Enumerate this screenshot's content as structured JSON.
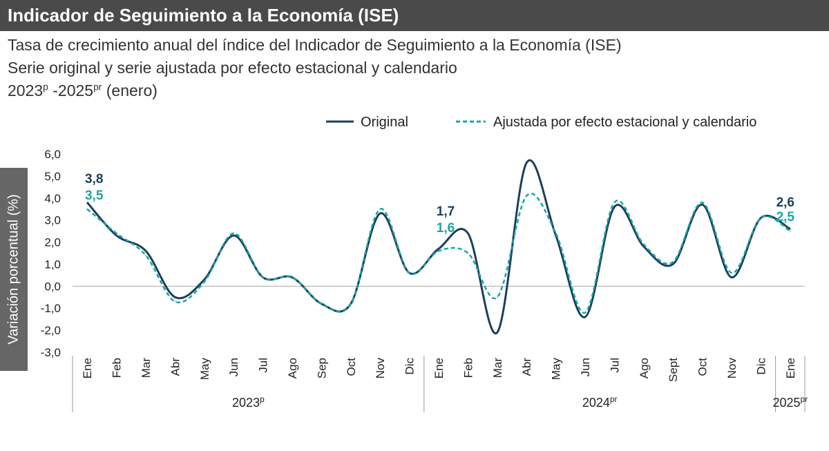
{
  "header": {
    "title": "Indicador de Seguimiento a la Economía (ISE)",
    "subtitle_line1": "Tasa de crecimiento anual del índice del Indicador de Seguimiento a la Economía (ISE)",
    "subtitle_line2": "Serie original y serie ajustada por efecto estacional y calendario",
    "subtitle_line3_a": "2023",
    "subtitle_line3_sup_a": "p",
    "subtitle_line3_b": " -2025",
    "subtitle_line3_sup_b": "pr",
    "subtitle_line3_c": " (enero)"
  },
  "colors": {
    "original": "#1b3f5c",
    "ajustada": "#1aa5a5",
    "title_bg": "#4a4a4a",
    "ylabel_bg": "#666666"
  },
  "chart_data": {
    "type": "line",
    "title": "Indicador de Seguimiento a la Economía (ISE)",
    "ylabel": "Variación porcentual (%)",
    "ylim": [
      -3.0,
      6.0
    ],
    "yticks": [
      "6,0",
      "5,0",
      "4,0",
      "3,0",
      "2,0",
      "1,0",
      "0,0",
      "-1,0",
      "-2,0",
      "-3,0"
    ],
    "ytick_values": [
      6,
      5,
      4,
      3,
      2,
      1,
      0,
      -1,
      -2,
      -3
    ],
    "categories": [
      "Ene",
      "Feb",
      "Mar",
      "Abr",
      "May",
      "Jun",
      "Jul",
      "Ago",
      "Sep",
      "Oct",
      "Nov",
      "Dic",
      "Ene",
      "Feb",
      "Mar",
      "Abr",
      "May",
      "Jun",
      "Jul",
      "Ago",
      "Sept",
      "Oct",
      "Nov",
      "Dic",
      "Ene"
    ],
    "years": [
      {
        "label": "2023",
        "sup": "p",
        "start": 0,
        "end": 11
      },
      {
        "label": "2024",
        "sup": "pr",
        "start": 12,
        "end": 23
      },
      {
        "label": "2025",
        "sup": "pr",
        "start": 24,
        "end": 24
      }
    ],
    "legend": {
      "original": "Original",
      "ajustada": "Ajustada por efecto estacional y calendario",
      "position": "top-right"
    },
    "series": [
      {
        "name": "Original",
        "style": "solid",
        "values": [
          3.8,
          2.3,
          1.6,
          -0.5,
          0.3,
          2.3,
          0.4,
          0.4,
          -0.8,
          -0.8,
          3.3,
          0.6,
          1.7,
          2.4,
          -2.1,
          5.6,
          2.3,
          -1.4,
          3.6,
          1.8,
          1.0,
          3.7,
          0.4,
          3.1,
          2.6
        ]
      },
      {
        "name": "Ajustada por efecto estacional y calendario",
        "style": "dashed",
        "values": [
          3.5,
          2.4,
          1.4,
          -0.7,
          0.2,
          2.4,
          0.4,
          0.4,
          -0.8,
          -0.8,
          3.5,
          0.6,
          1.6,
          1.5,
          -0.5,
          4.1,
          2.4,
          -1.2,
          3.8,
          1.9,
          1.1,
          3.8,
          0.6,
          3.1,
          2.5
        ]
      }
    ],
    "annotations": [
      {
        "index": 0,
        "original": "3,8",
        "ajustada": "3,5"
      },
      {
        "index": 12,
        "original": "1,7",
        "ajustada": "1,6"
      },
      {
        "index": 24,
        "original": "2,6",
        "ajustada": "2,5"
      }
    ]
  }
}
